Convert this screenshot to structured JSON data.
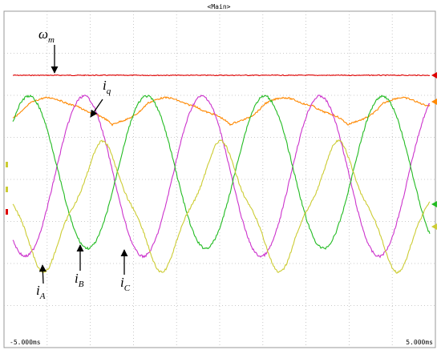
{
  "header": {
    "title": "<Main>"
  },
  "time_axis": {
    "left": "-5.000ms",
    "right": "5.000ms"
  },
  "annotations": [
    {
      "symbol": "ω",
      "sub": "m"
    },
    {
      "symbol": "i",
      "sub": "q"
    },
    {
      "symbol": "i",
      "sub": "A"
    },
    {
      "symbol": "i",
      "sub": "B"
    },
    {
      "symbol": "i",
      "sub": "C"
    }
  ]
}
